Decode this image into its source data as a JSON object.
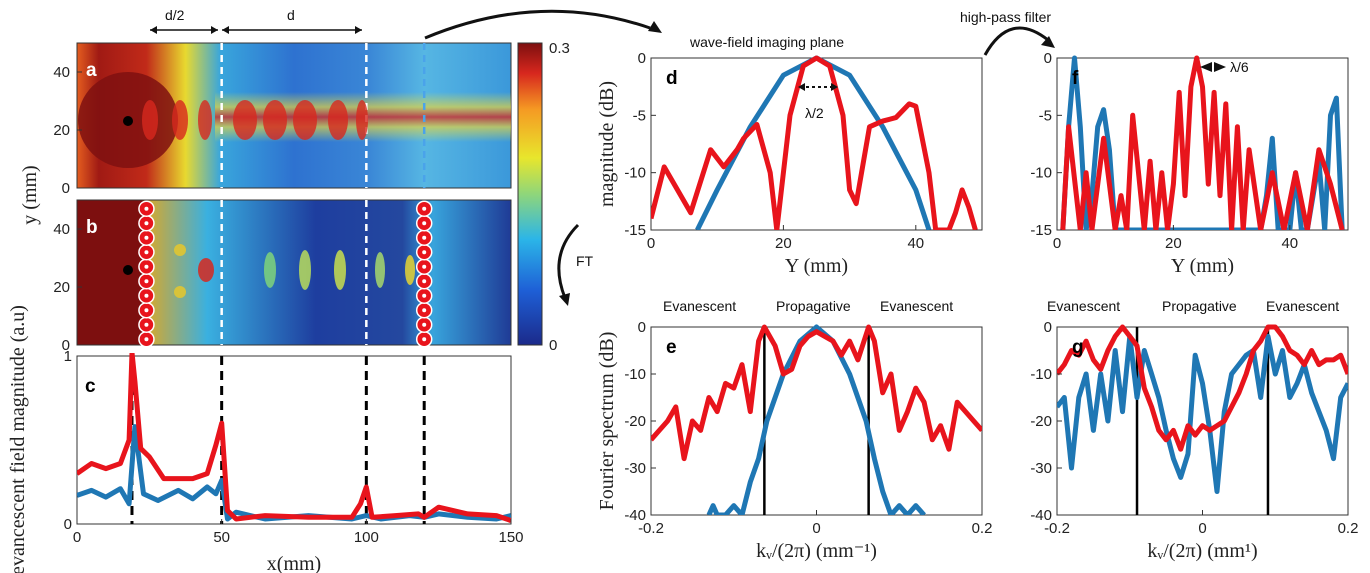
{
  "annotations": {
    "d_half": "d/2",
    "d": "d",
    "imaging_plane": "wave-field imaging plane",
    "highpass": "high-pass filter",
    "ft": "FT",
    "lambda2": "λ/2",
    "lambda6": "λ/6",
    "evanescent": "Evanescent",
    "propagative": "Propagative"
  },
  "colors": {
    "blue": "#1f77b4",
    "red": "#e8141c"
  },
  "chart_data": [
    {
      "panel": "a",
      "type": "heatmap",
      "xlim": [
        0,
        150
      ],
      "ylim": [
        0,
        50
      ],
      "yticks": [
        "0",
        "20",
        "40"
      ],
      "colorbar": {
        "min": "0",
        "max": "0.3"
      },
      "dashed_lines_x": [
        50,
        100,
        120
      ]
    },
    {
      "panel": "b",
      "type": "heatmap",
      "xlim": [
        0,
        150
      ],
      "ylim": [
        0,
        50
      ],
      "yticks": [
        "0",
        "20",
        "40"
      ],
      "ylabel": "y (mm)",
      "scatterers_x": [
        24,
        120
      ],
      "scatterers_y": [
        2,
        7,
        12,
        17,
        22,
        27,
        32,
        37,
        42,
        47
      ]
    },
    {
      "panel": "c",
      "type": "line",
      "xlabel": "x(mm)",
      "ylabel": "evancescent field magnitude (a.u)",
      "xlim": [
        0,
        150
      ],
      "ylim": [
        0,
        1
      ],
      "xticks": [
        "0",
        "50",
        "100",
        "150"
      ],
      "yticks": [
        "0",
        "1"
      ],
      "vlines": [
        19,
        50,
        100,
        120
      ],
      "series": [
        {
          "color": "blue",
          "x": [
            0,
            5,
            10,
            15,
            18,
            20,
            23,
            28,
            35,
            40,
            45,
            48,
            50,
            52,
            55,
            65,
            80,
            95,
            100,
            105,
            115,
            120,
            125,
            135,
            145,
            150
          ],
          "y": [
            0.17,
            0.2,
            0.16,
            0.21,
            0.12,
            0.58,
            0.18,
            0.14,
            0.2,
            0.15,
            0.22,
            0.18,
            0.26,
            0.03,
            0.07,
            0.03,
            0.05,
            0.03,
            0.05,
            0.03,
            0.05,
            0.04,
            0.06,
            0.04,
            0.03,
            0.05
          ]
        },
        {
          "color": "red",
          "x": [
            0,
            5,
            10,
            15,
            18,
            19,
            20,
            22,
            25,
            30,
            35,
            40,
            45,
            48,
            50,
            52,
            55,
            65,
            80,
            95,
            98,
            100,
            102,
            110,
            118,
            120,
            125,
            135,
            145,
            150
          ],
          "y": [
            0.3,
            0.36,
            0.33,
            0.36,
            0.5,
            1.02,
            0.85,
            0.45,
            0.4,
            0.27,
            0.27,
            0.27,
            0.3,
            0.47,
            0.6,
            0.08,
            0.03,
            0.05,
            0.04,
            0.04,
            0.12,
            0.22,
            0.04,
            0.05,
            0.06,
            0.04,
            0.1,
            0.06,
            0.05,
            0.02
          ]
        }
      ]
    },
    {
      "panel": "d",
      "type": "line",
      "xlabel": "Y (mm)",
      "ylabel": "magnitude (dB)",
      "xlim": [
        0,
        50
      ],
      "ylim": [
        -15,
        0
      ],
      "xticks": [
        "0",
        "20",
        "40"
      ],
      "yticks": [
        "0",
        "-5",
        "-10",
        "-15"
      ],
      "series": [
        {
          "color": "blue",
          "x": [
            7,
            10,
            15,
            20,
            25,
            30,
            35,
            40,
            42
          ],
          "y": [
            -15,
            -11.5,
            -6,
            -1.5,
            0,
            -1.5,
            -6,
            -11.5,
            -15
          ]
        },
        {
          "color": "red",
          "x": [
            0,
            2,
            4,
            6,
            9,
            11,
            13,
            14,
            16,
            18,
            19,
            21,
            23,
            25,
            27,
            29,
            30,
            31,
            33,
            35,
            37,
            39,
            40,
            42,
            43,
            45,
            46,
            47,
            48,
            49
          ],
          "y": [
            -14,
            -9.5,
            -11.5,
            -13.5,
            -8,
            -9.5,
            -8,
            -7,
            -5.8,
            -10,
            -15,
            -5,
            -0.7,
            0,
            -0.7,
            -5,
            -11.5,
            -12.7,
            -6,
            -5.5,
            -5.2,
            -4,
            -4.2,
            -10,
            -15,
            -15,
            -13.5,
            -11.5,
            -13,
            -15
          ]
        }
      ]
    },
    {
      "panel": "e",
      "type": "line",
      "xlabel": "kᵥ/(2π) (mm⁻¹)",
      "ylabel": "Fourier spectrum (dB)",
      "xlim": [
        -0.2,
        0.2
      ],
      "ylim": [
        -40,
        0
      ],
      "xticks": [
        "-0.2",
        "0",
        "0.2"
      ],
      "yticks": [
        "0",
        "-10",
        "-20",
        "-30",
        "-40"
      ],
      "vlines": [
        -0.063,
        0.063
      ],
      "series": [
        {
          "color": "blue",
          "x": [
            -0.13,
            -0.125,
            -0.12,
            -0.11,
            -0.1,
            -0.09,
            -0.08,
            -0.07,
            -0.06,
            -0.04,
            -0.02,
            0,
            0.02,
            0.04,
            0.06,
            0.07,
            0.08,
            0.09,
            0.1,
            0.11,
            0.12,
            0.13
          ],
          "y": [
            -40,
            -38,
            -40,
            -40,
            -38,
            -40,
            -33,
            -28,
            -20,
            -10,
            -3,
            0,
            -3,
            -10,
            -20,
            -28,
            -35,
            -40,
            -38,
            -40,
            -38,
            -40
          ]
        },
        {
          "color": "red",
          "x": [
            -0.2,
            -0.19,
            -0.18,
            -0.17,
            -0.16,
            -0.15,
            -0.14,
            -0.13,
            -0.12,
            -0.11,
            -0.1,
            -0.09,
            -0.08,
            -0.07,
            -0.063,
            -0.05,
            -0.04,
            -0.03,
            -0.02,
            -0.01,
            0,
            0.01,
            0.02,
            0.03,
            0.04,
            0.05,
            0.063,
            0.07,
            0.08,
            0.09,
            0.1,
            0.11,
            0.12,
            0.13,
            0.14,
            0.15,
            0.16,
            0.17,
            0.18,
            0.19,
            0.2
          ],
          "y": [
            -24,
            -22,
            -20,
            -17,
            -28,
            -20,
            -22,
            -15,
            -18,
            -12,
            -13,
            -8,
            -18,
            -3,
            0,
            -4,
            -10,
            -9,
            -4,
            -2,
            -1,
            -2,
            -3,
            -6,
            -3,
            -7,
            0,
            -3,
            -14,
            -10,
            -22,
            -18,
            -13,
            -16,
            -24,
            -21,
            -26,
            -16,
            -18,
            -20,
            -22
          ]
        }
      ]
    },
    {
      "panel": "f",
      "type": "line",
      "xlabel": "Y (mm)",
      "xlim": [
        0,
        50
      ],
      "ylim": [
        -15,
        0
      ],
      "xticks": [
        "0",
        "20",
        "40"
      ],
      "yticks": [
        "0",
        "-5",
        "-10",
        "-15"
      ],
      "series": [
        {
          "color": "blue",
          "x": [
            1,
            2,
            3,
            4,
            5,
            6,
            7,
            8,
            9,
            10,
            11,
            35,
            36,
            37,
            38,
            40,
            41,
            42,
            43,
            44,
            45,
            46,
            47,
            48,
            49
          ],
          "y": [
            -15,
            -6,
            0,
            -6,
            -15,
            -12,
            -6,
            -4.5,
            -8,
            -15,
            -15,
            -15,
            -12,
            -7,
            -15,
            -15,
            -10,
            -15,
            -15,
            -12,
            -9,
            -15,
            -5,
            -3.5,
            -15
          ]
        },
        {
          "color": "red",
          "x": [
            1,
            2,
            4,
            5,
            6,
            8,
            10,
            11,
            12,
            13,
            15,
            16,
            17,
            18,
            19,
            20,
            21,
            22,
            23,
            24,
            25,
            26,
            27,
            28,
            29,
            30,
            31,
            32,
            33,
            35,
            37,
            39,
            41,
            43,
            45,
            47,
            49
          ],
          "y": [
            -15,
            -6,
            -15,
            -10,
            -15,
            -7,
            -15,
            -12,
            -15,
            -5,
            -15,
            -9,
            -15,
            -10,
            -15,
            -11,
            -3,
            -12,
            -2.5,
            0,
            -2.5,
            -11,
            -3,
            -12,
            -4,
            -15,
            -6,
            -15,
            -8,
            -15,
            -10,
            -15,
            -10,
            -15,
            -8,
            -11,
            -15
          ]
        }
      ]
    },
    {
      "panel": "g",
      "type": "line",
      "xlabel": "kᵥ/(2π) (mm¹)",
      "xlim": [
        -0.2,
        0.2
      ],
      "ylim": [
        -40,
        0
      ],
      "xticks": [
        "-0.2",
        "0",
        "0.2"
      ],
      "yticks": [
        "0",
        "-10",
        "-20",
        "-30",
        "-40"
      ],
      "vlines": [
        -0.09,
        0.09
      ],
      "series": [
        {
          "color": "blue",
          "x": [
            -0.2,
            -0.19,
            -0.18,
            -0.17,
            -0.16,
            -0.15,
            -0.14,
            -0.13,
            -0.12,
            -0.11,
            -0.1,
            -0.09,
            -0.08,
            -0.07,
            -0.06,
            -0.05,
            -0.04,
            -0.03,
            -0.02,
            -0.01,
            0,
            0.01,
            0.02,
            0.03,
            0.04,
            0.05,
            0.06,
            0.07,
            0.08,
            0.09,
            0.1,
            0.11,
            0.12,
            0.13,
            0.14,
            0.15,
            0.16,
            0.17,
            0.18,
            0.19,
            0.2
          ],
          "y": [
            -17,
            -15,
            -30,
            -15,
            -10,
            -22,
            -10,
            -20,
            -5,
            -18,
            -2,
            -15,
            -5,
            -10,
            -15,
            -22,
            -28,
            -32,
            -27,
            -6,
            -12,
            -22,
            -35,
            -18,
            -10,
            -8,
            -6,
            -5,
            -15,
            -2,
            -10,
            -5,
            -15,
            -12,
            -8,
            -14,
            -18,
            -22,
            -28,
            -15,
            -12
          ]
        },
        {
          "color": "red",
          "x": [
            -0.2,
            -0.19,
            -0.18,
            -0.17,
            -0.16,
            -0.15,
            -0.14,
            -0.13,
            -0.12,
            -0.11,
            -0.1,
            -0.09,
            -0.08,
            -0.07,
            -0.06,
            -0.05,
            -0.04,
            -0.03,
            -0.02,
            -0.01,
            0,
            0.01,
            0.02,
            0.03,
            0.04,
            0.05,
            0.06,
            0.07,
            0.08,
            0.09,
            0.1,
            0.11,
            0.12,
            0.13,
            0.14,
            0.15,
            0.16,
            0.17,
            0.18,
            0.19,
            0.2
          ],
          "y": [
            -10,
            -8,
            -5,
            -6,
            -3,
            -7,
            -9,
            -5,
            -2,
            0,
            -2,
            -4,
            -13,
            -17,
            -22,
            -24,
            -22,
            -26,
            -21,
            -23,
            -21,
            -22,
            -21,
            -20,
            -17,
            -14,
            -10,
            -5,
            -3,
            0,
            0,
            -2,
            -5,
            -6,
            -8,
            -5,
            -8,
            -7,
            -7,
            -6,
            -10
          ]
        }
      ]
    }
  ]
}
